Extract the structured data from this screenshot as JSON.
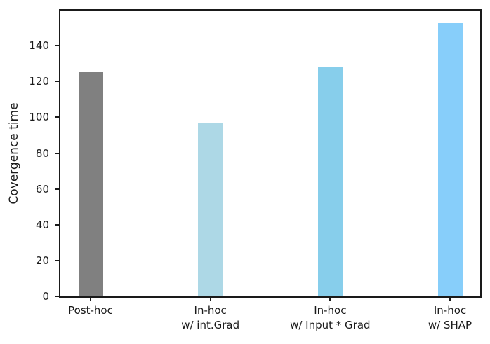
{
  "chart_data": {
    "type": "bar",
    "title": "",
    "xlabel": "",
    "ylabel": "Covergence time",
    "categories": [
      "Post-hoc",
      "In-hoc\nw/ int.Grad",
      "In-hoc\nw/ Input * Grad",
      "In-hoc\nw/ SHAP"
    ],
    "values": [
      125,
      96.5,
      128.5,
      152.5
    ],
    "bar_colors": [
      "#808080",
      "#add8e6",
      "#87ceeb",
      "#87cefa"
    ],
    "yticks": [
      0,
      20,
      40,
      60,
      80,
      100,
      120,
      140
    ],
    "ylim": [
      0,
      160
    ],
    "grid": false,
    "legend": null
  },
  "colors": {
    "axis": "#1a1a1a",
    "text": "#1a1a1a",
    "background": "#ffffff"
  }
}
